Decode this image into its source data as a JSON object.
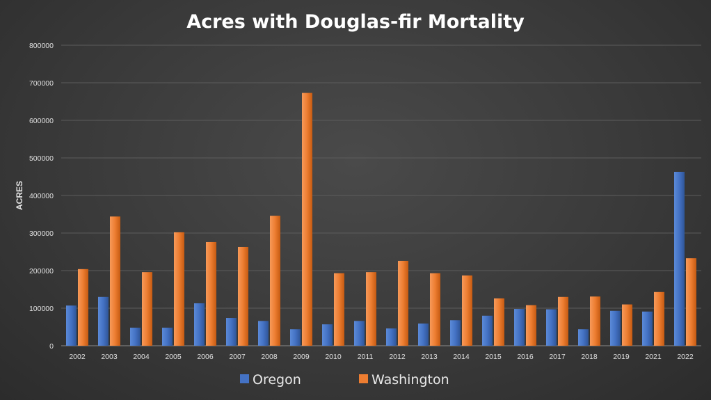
{
  "chart_data": {
    "type": "bar",
    "title": "Acres with Douglas-fir Mortality",
    "xlabel": "",
    "ylabel": "ACRES",
    "ylim": [
      0,
      800000
    ],
    "yticks": [
      "0",
      "100000",
      "200000",
      "300000",
      "400000",
      "500000",
      "600000",
      "700000",
      "800000"
    ],
    "categories": [
      "2002",
      "2003",
      "2004",
      "2005",
      "2006",
      "2007",
      "2008",
      "2009",
      "2010",
      "2011",
      "2012",
      "2013",
      "2014",
      "2015",
      "2016",
      "2017",
      "2018",
      "2019",
      "2021",
      "2022"
    ],
    "series": [
      {
        "name": "Oregon",
        "color": "#4472c4",
        "values": [
          107000,
          130000,
          48000,
          48000,
          113000,
          74000,
          66000,
          44000,
          57000,
          66000,
          46000,
          59000,
          68000,
          80000,
          98000,
          97000,
          44000,
          93000,
          91000,
          463000
        ]
      },
      {
        "name": "Washington",
        "color": "#ed7d31",
        "values": [
          204000,
          344000,
          196000,
          302000,
          276000,
          263000,
          346000,
          673000,
          193000,
          196000,
          226000,
          193000,
          187000,
          126000,
          108000,
          130000,
          131000,
          110000,
          143000,
          233000
        ]
      }
    ],
    "grid": true,
    "legend": "bottom"
  }
}
